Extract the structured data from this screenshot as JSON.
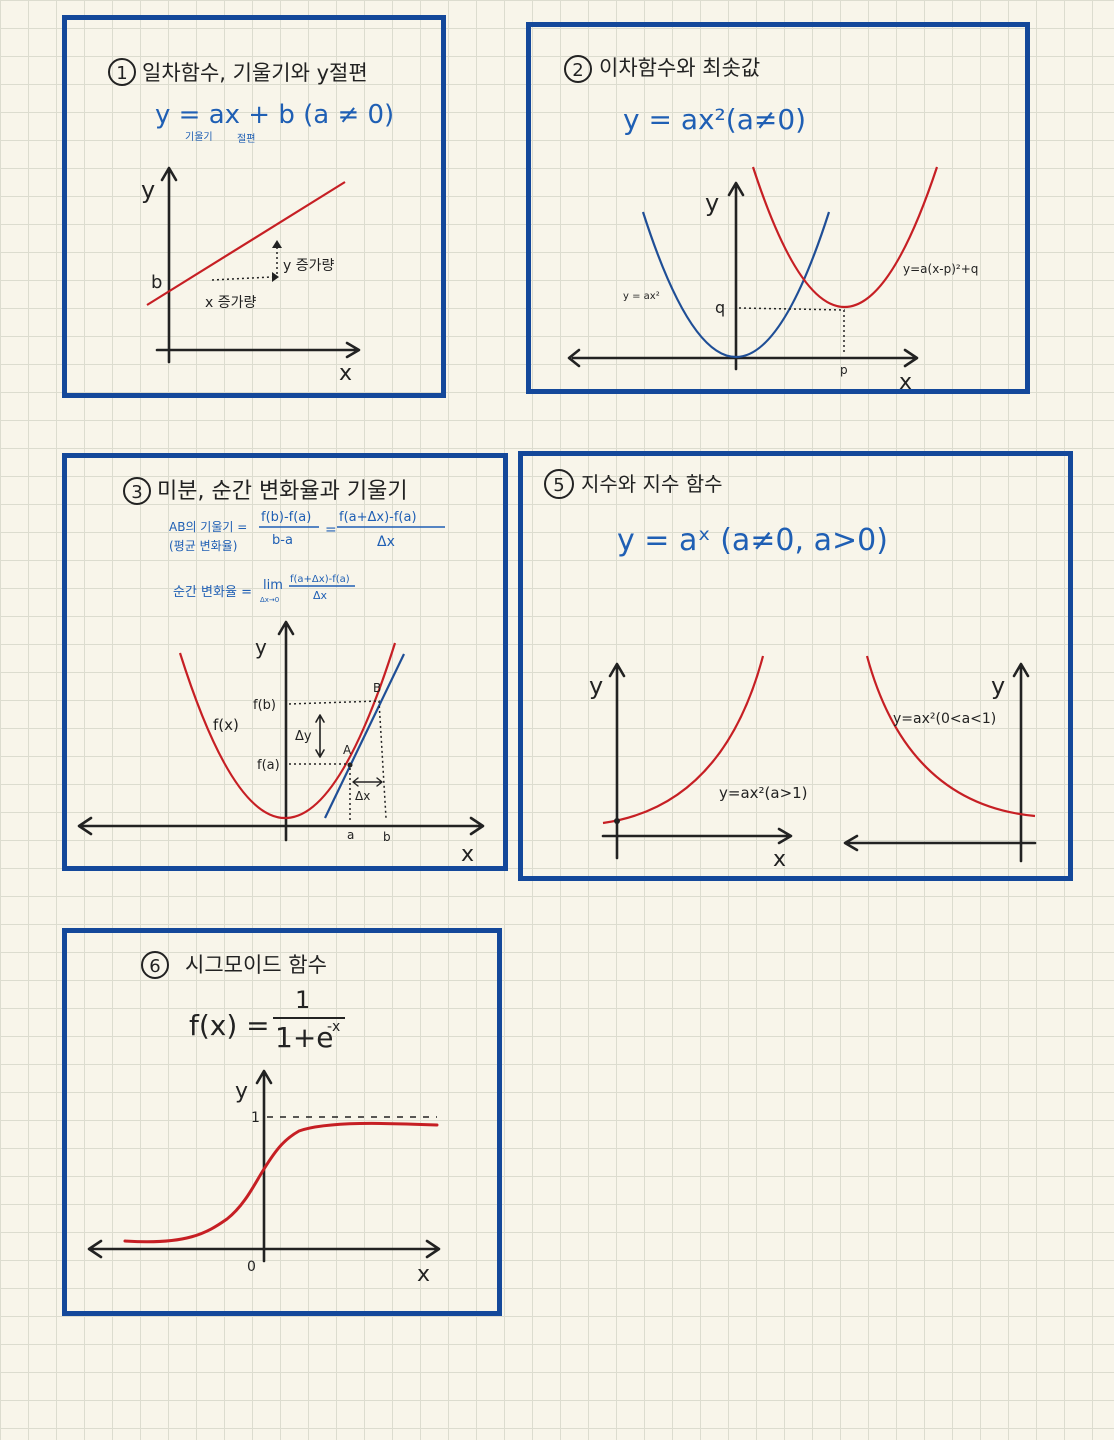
{
  "panels": {
    "p1": {
      "num": "1",
      "title": "일차함수, 기울기와 y절편",
      "formula": "y = ax + b (a ≠ 0)",
      "slope_note": "기울기",
      "intercept_note": "절편",
      "y_label": "y",
      "x_label": "x",
      "b_label": "b",
      "y_increase": "y 증가량",
      "x_increase": "x 증가량"
    },
    "p2": {
      "num": "2",
      "title": "이차함수와 최솟값",
      "formula": "y = ax²(a≠0)",
      "y_label": "y",
      "x_label": "x",
      "left_curve": "y = ax²",
      "right_curve": "y=a(x-p)²+q",
      "q_label": "q",
      "p_label": "p"
    },
    "p3": {
      "num": "3",
      "title": "미분, 순간 변화율과 기울기",
      "avg_left": "AB의 기울기 =",
      "avg_left2": "(평균 변화율)",
      "avg_frac_num": "f(b)-f(a)",
      "avg_frac_den": "b-a",
      "avg_frac2_num": "f(a+Δx)-f(a)",
      "avg_frac2_den": "Δx",
      "inst_left": "순간 변화율 =",
      "lim": "lim",
      "lim_sub": "Δx→0",
      "inst_num": "f(a+Δx)-f(a)",
      "inst_den": "Δx",
      "y_label": "y",
      "x_label": "x",
      "fx": "f(x)",
      "fb": "f(b)",
      "fa": "f(a)",
      "dy": "Δy",
      "dx": "Δx",
      "A": "A",
      "B": "B",
      "a": "a",
      "b": "b"
    },
    "p5": {
      "num": "5",
      "title": "지수와 지수 함수",
      "formula": "y = aˣ (a≠0, a>0)",
      "y_label_left": "y",
      "y_label_right": "y",
      "x_label": "x",
      "curve_left": "y=ax²(a>1)",
      "curve_right": "y=ax²(0<a<1)"
    },
    "p6": {
      "num": "6",
      "title": "시그모이드 함수",
      "formula_left": "f(x) =",
      "numerator": "1",
      "denominator": "1+e",
      "exponent": "-x",
      "y_label": "y",
      "x_label": "x",
      "one": "1",
      "zero": "0"
    }
  }
}
